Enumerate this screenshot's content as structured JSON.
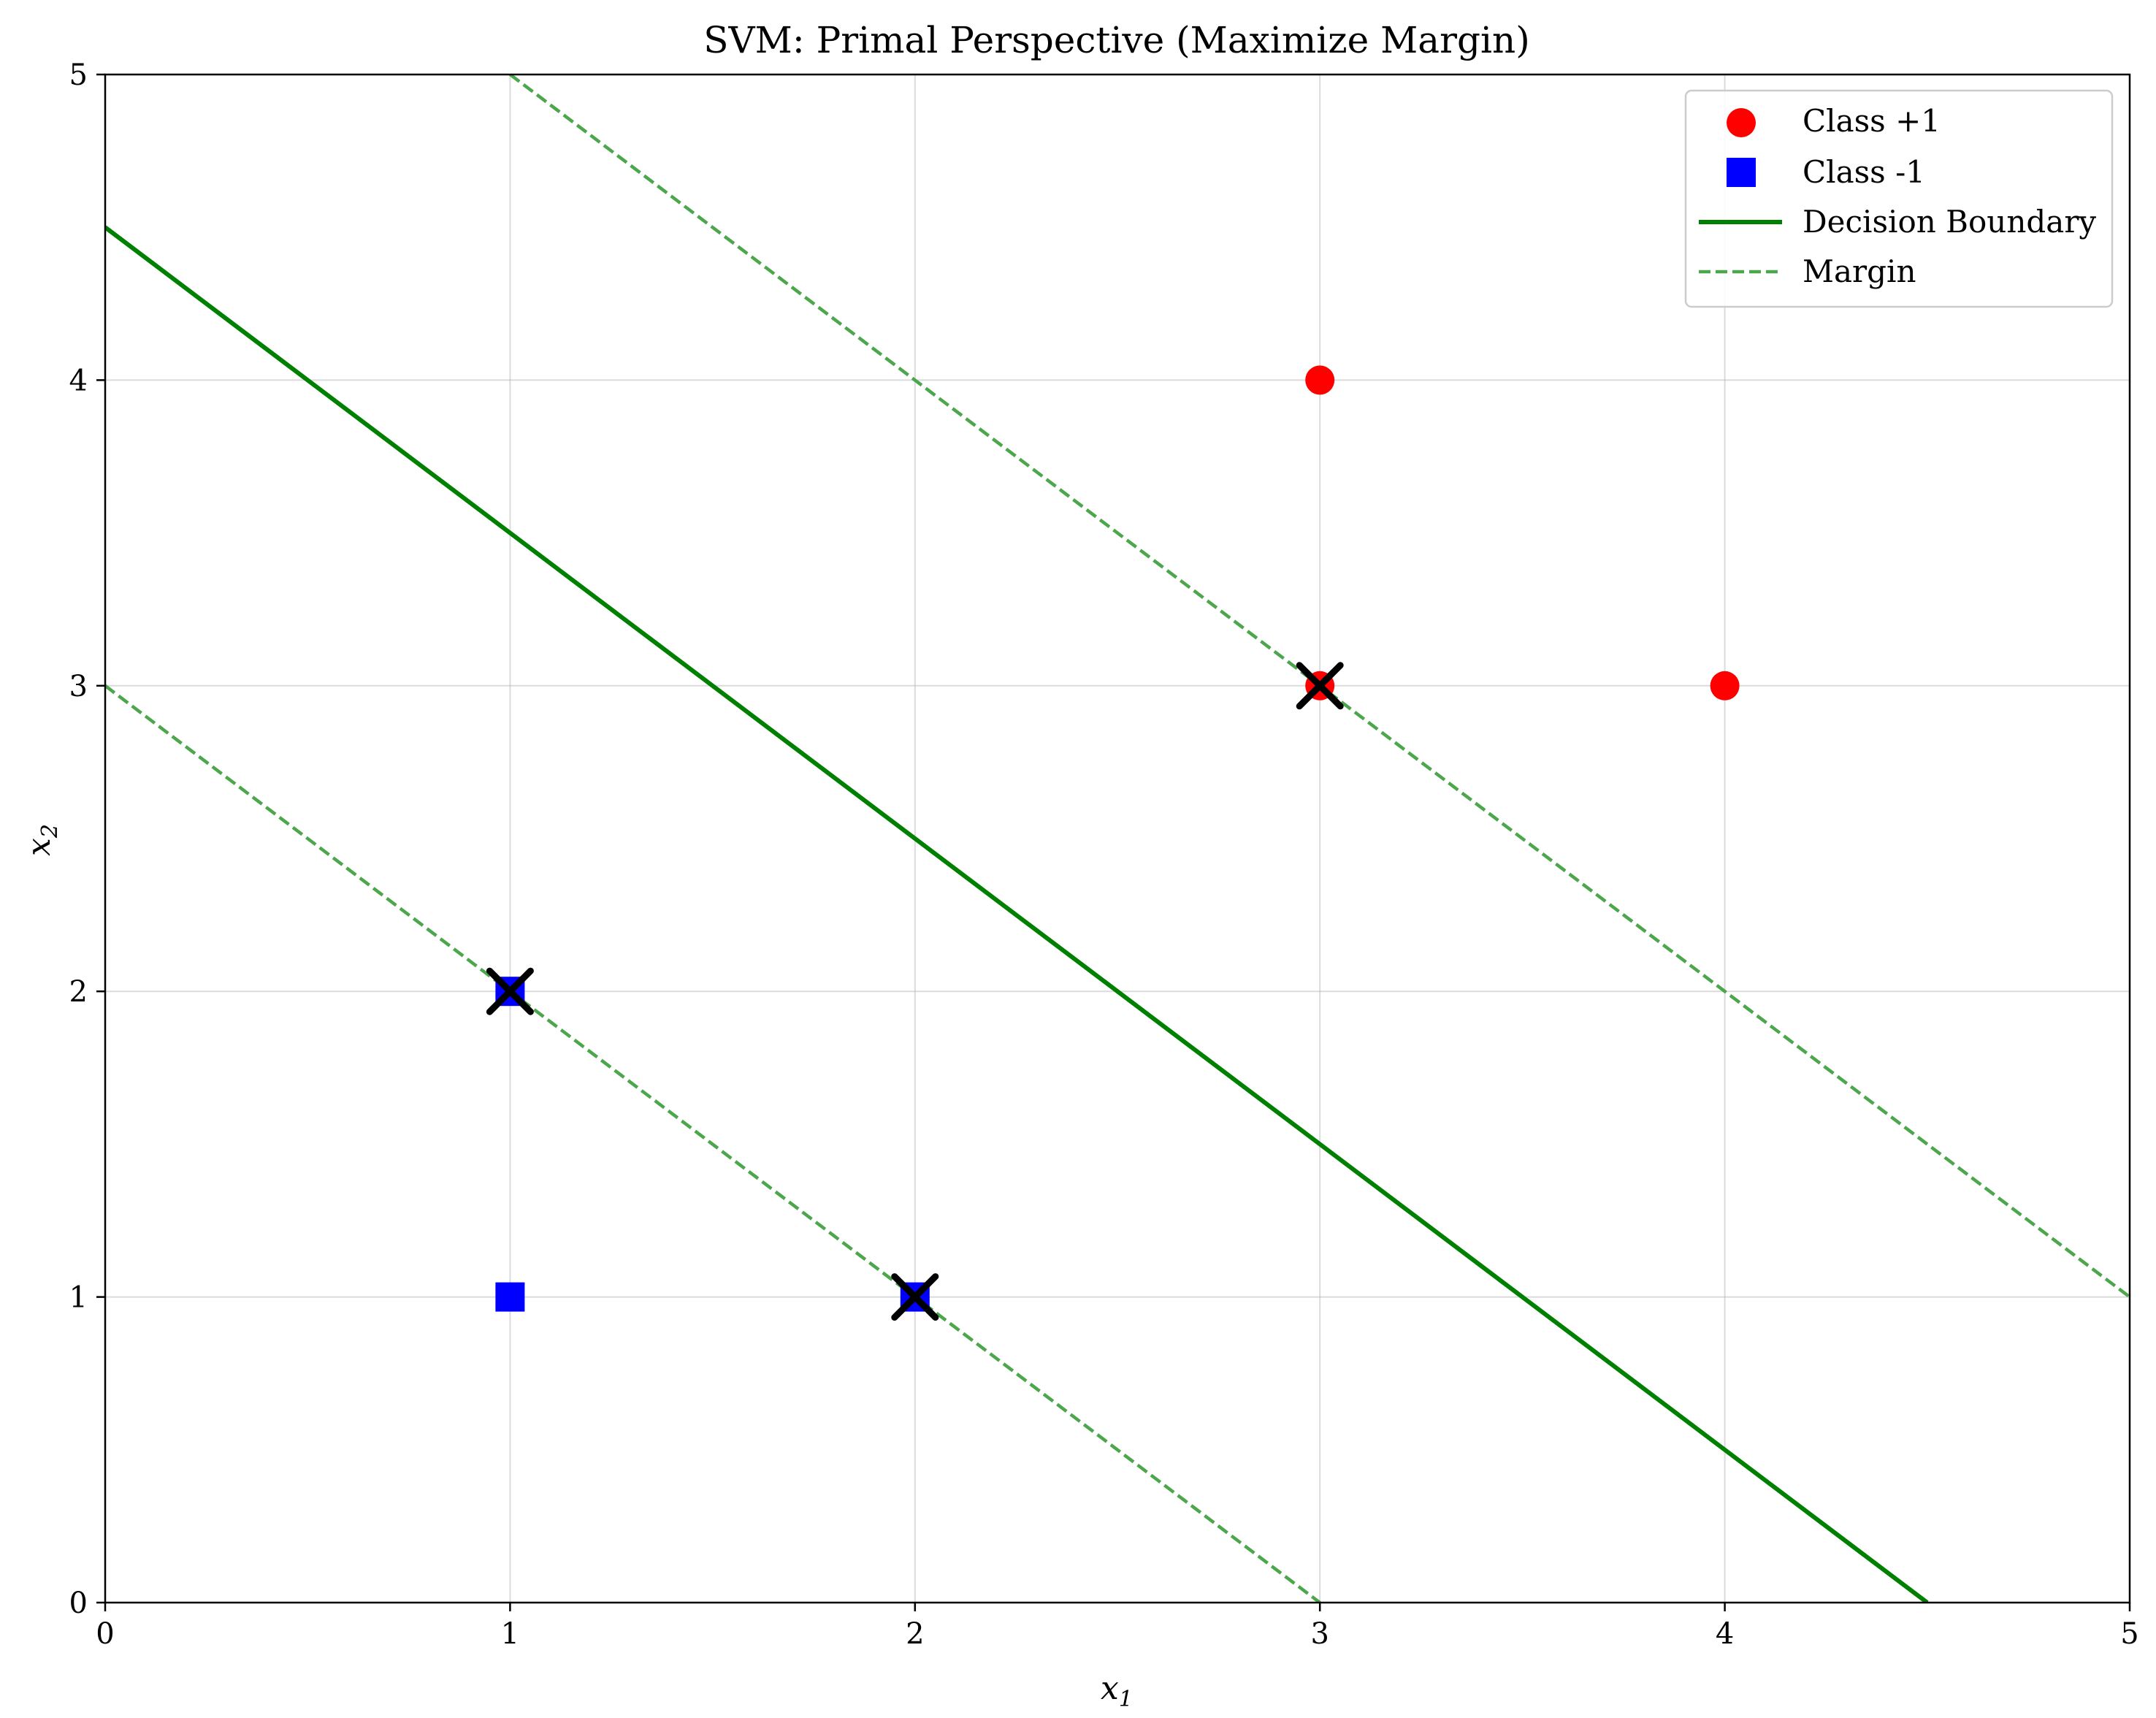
{
  "chart_data": {
    "type": "scatter",
    "title": "SVM: Primal Perspective (Maximize Margin)",
    "xlabel": "x",
    "xlabel_sub": "1",
    "ylabel": "x",
    "ylabel_sub": "2",
    "xlim": [
      0,
      5
    ],
    "ylim": [
      0,
      5
    ],
    "xticks": [
      "0",
      "1",
      "2",
      "3",
      "4",
      "5"
    ],
    "yticks": [
      "0",
      "1",
      "2",
      "3",
      "4",
      "5"
    ],
    "grid": true,
    "legend_position": "top-right",
    "series": [
      {
        "name": "Class +1",
        "kind": "points",
        "marker": "circle",
        "color": "#ff0000",
        "x": [
          3,
          3,
          4
        ],
        "y": [
          3,
          4,
          3
        ]
      },
      {
        "name": "Class -1",
        "kind": "points",
        "marker": "square",
        "color": "#0000ff",
        "x": [
          1,
          1,
          2
        ],
        "y": [
          1,
          2,
          1
        ]
      },
      {
        "name": "Decision Boundary",
        "kind": "line",
        "style": "solid",
        "color": "#008000",
        "x": [
          0,
          4.5
        ],
        "y": [
          4.5,
          0
        ]
      },
      {
        "name": "Margin",
        "kind": "line",
        "style": "dashed",
        "color": "#4ca64c",
        "x": [
          0,
          3
        ],
        "y": [
          3,
          0
        ]
      },
      {
        "name": "",
        "kind": "line",
        "style": "dashed",
        "color": "#4ca64c",
        "x": [
          1,
          5
        ],
        "y": [
          5,
          1
        ]
      }
    ],
    "support_vectors": {
      "marker": "x",
      "color": "#000000",
      "x": [
        3,
        1,
        2
      ],
      "y": [
        3,
        2,
        1
      ]
    }
  }
}
